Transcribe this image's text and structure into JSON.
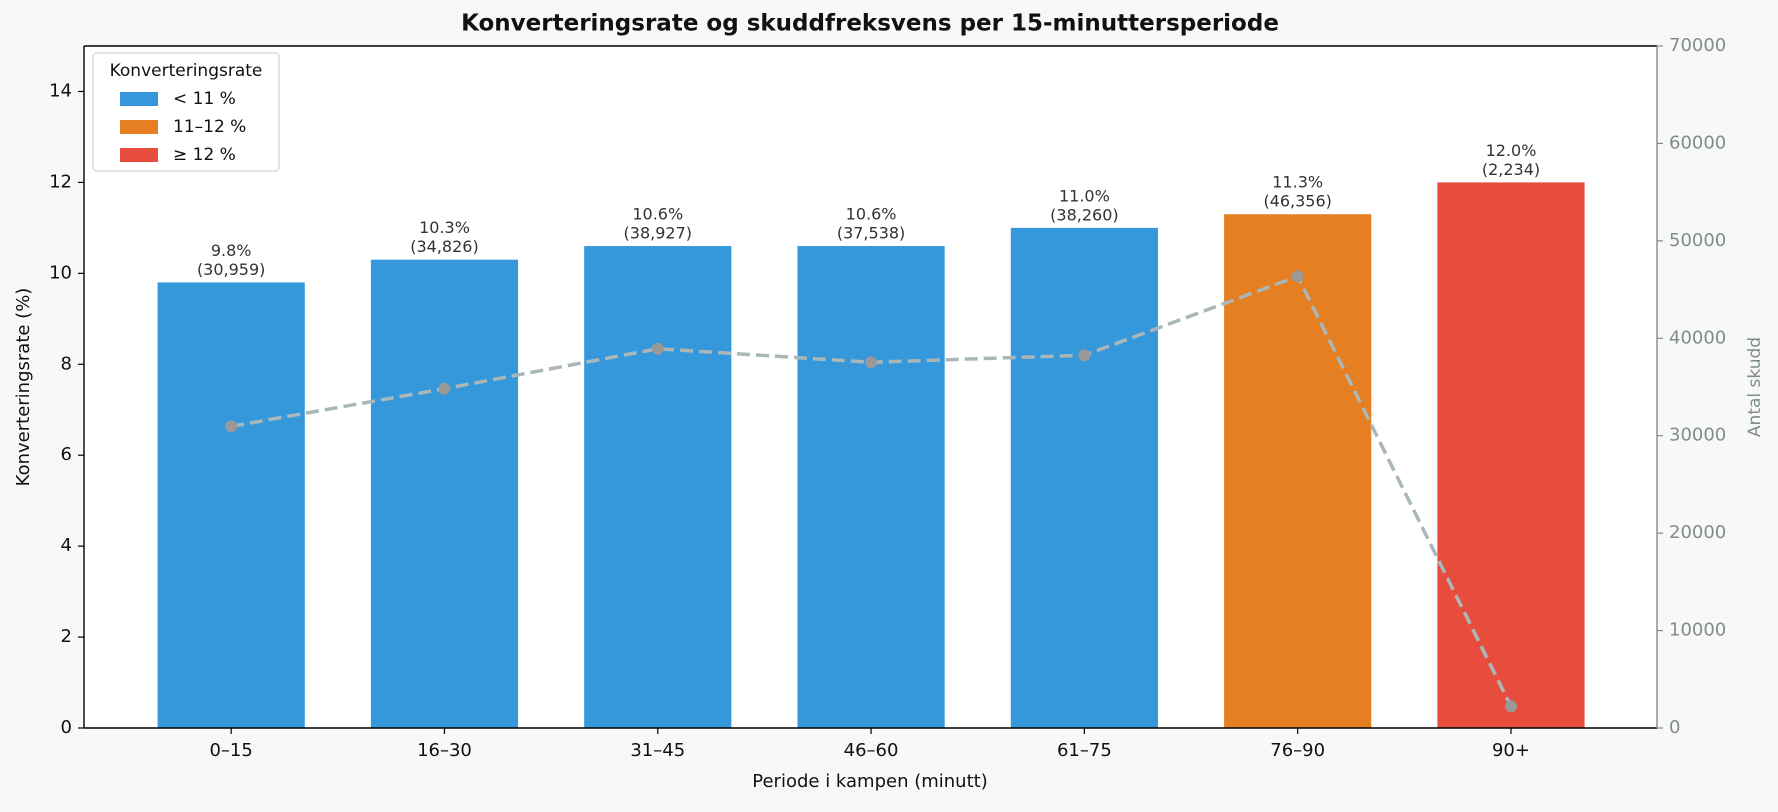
{
  "chart_data": {
    "type": "bar",
    "title": "Konverteringsrate og skuddfreksvens per 15-minuttersperiode",
    "xlabel": "Periode i kampen (minutt)",
    "ylabel": "Konverteringsrate (%)",
    "y2label": "Antal skudd",
    "categories": [
      "0–15",
      "16–30",
      "31–45",
      "46–60",
      "61–75",
      "76–90",
      "90+"
    ],
    "bars": {
      "values": [
        9.8,
        10.3,
        10.6,
        10.6,
        11.0,
        11.3,
        12.0
      ],
      "value_labels": [
        "9.8%",
        "10.3%",
        "10.6%",
        "10.6%",
        "11.0%",
        "11.3%",
        "12.0%"
      ],
      "colors": [
        "#3498db",
        "#3498db",
        "#3498db",
        "#3498db",
        "#3498db",
        "#e67e22",
        "#e74c3c"
      ]
    },
    "line": {
      "type": "line",
      "axis": "y2",
      "color": "#aab7b8",
      "marker_color": "#999999",
      "linestyle": "dashed",
      "values": [
        30959,
        34826,
        38927,
        37538,
        38260,
        46356,
        2234
      ],
      "value_labels": [
        "(30,959)",
        "(34,826)",
        "(38,927)",
        "(37,538)",
        "(38,260)",
        "(46,356)",
        "(2,234)"
      ]
    },
    "legend": {
      "title": "Konverteringsrate",
      "location": "upper left",
      "items": [
        {
          "label": "< 11 %",
          "color": "#3498db"
        },
        {
          "label": "11–12 %",
          "color": "#e67e22"
        },
        {
          "label": "≥ 12 %",
          "color": "#e74c3c"
        }
      ]
    },
    "ylim": [
      0,
      15
    ],
    "yticks": [
      0,
      2,
      4,
      6,
      8,
      10,
      12,
      14
    ],
    "y2lim": [
      0,
      70000
    ],
    "y2ticks": [
      0,
      10000,
      20000,
      30000,
      40000,
      50000,
      60000,
      70000
    ],
    "y2_color": "#7f8c8d",
    "grid": false
  }
}
